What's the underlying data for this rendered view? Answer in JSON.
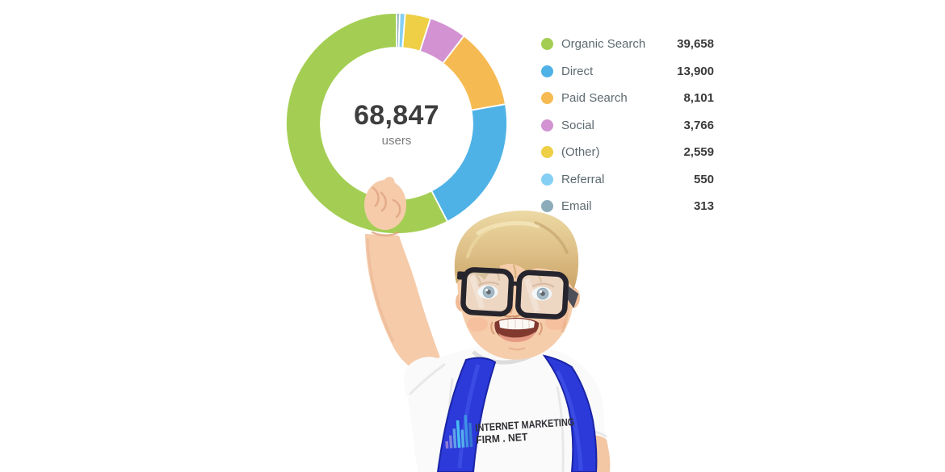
{
  "chart_data": {
    "type": "pie",
    "subtype": "donut",
    "center_value": "68,847",
    "center_label": "users",
    "legend_position": "right",
    "start_angle": "top",
    "direction_largest": "counterclockwise",
    "series": [
      {
        "label": "Organic Search",
        "value": 39658,
        "display": "39,658",
        "color": "#A4CE53"
      },
      {
        "label": "Direct",
        "value": 13900,
        "display": "13,900",
        "color": "#4FB2E6"
      },
      {
        "label": "Paid Search",
        "value": 8101,
        "display": "8,101",
        "color": "#F6BA52"
      },
      {
        "label": "Social",
        "value": 3766,
        "display": "3,766",
        "color": "#D392D2"
      },
      {
        "label": "(Other)",
        "value": 2559,
        "display": "2,559",
        "color": "#EECF45"
      },
      {
        "label": "Referral",
        "value": 550,
        "display": "550",
        "color": "#85CFF4"
      },
      {
        "label": "Email",
        "value": 313,
        "display": "313",
        "color": "#8CACBA"
      }
    ]
  },
  "photo": {
    "alt": "Toddler boy with glasses and blue backpack straps pointing up at the donut chart",
    "shirt_line1": "INTERNET MARKETING",
    "shirt_line2": "FIRM . NET"
  }
}
